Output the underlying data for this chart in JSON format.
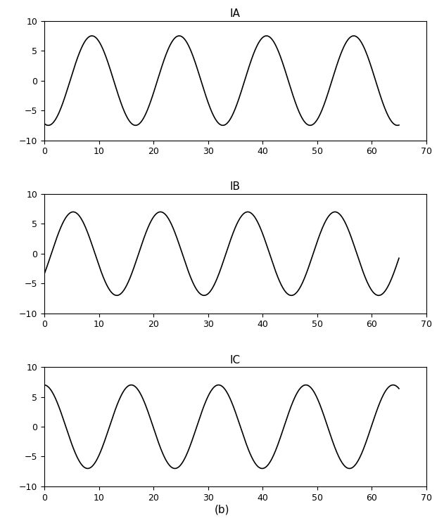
{
  "title_IA": "IA",
  "title_IB": "IB",
  "title_IC": "IC",
  "xlabel": "(b)",
  "xlim": [
    0,
    70
  ],
  "ylim": [
    -10,
    10
  ],
  "xticks": [
    0,
    10,
    20,
    30,
    40,
    50,
    60,
    70
  ],
  "yticks": [
    -10,
    -5,
    0,
    5,
    10
  ],
  "amplitude_A": 7.5,
  "amplitude_B": 7.0,
  "amplitude_C": 7.0,
  "period": 16.0,
  "phase_A": -1.85,
  "phase_B": -0.5,
  "phase_C": 1.6,
  "line_color": "#000000",
  "line_width": 1.2,
  "bg_color": "#ffffff",
  "title_fontsize": 11,
  "tick_fontsize": 9,
  "xlabel_fontsize": 11
}
